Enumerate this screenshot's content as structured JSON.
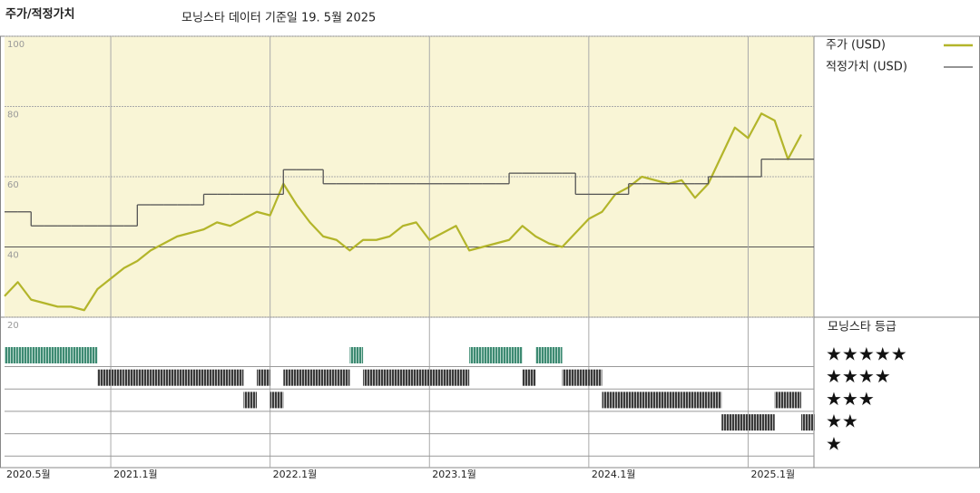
{
  "chart_data": {
    "type": "line",
    "title": "주가/적정가치",
    "subtitle": "모닝스타 데이터 기준일 19. 5월 2025",
    "x": [
      "2020-05",
      "2020-06",
      "2020-07",
      "2020-08",
      "2020-09",
      "2020-10",
      "2020-11",
      "2020-12",
      "2021-01",
      "2021-02",
      "2021-03",
      "2021-04",
      "2021-05",
      "2021-06",
      "2021-07",
      "2021-08",
      "2021-09",
      "2021-10",
      "2021-11",
      "2021-12",
      "2022-01",
      "2022-02",
      "2022-03",
      "2022-04",
      "2022-05",
      "2022-06",
      "2022-07",
      "2022-08",
      "2022-09",
      "2022-10",
      "2022-11",
      "2022-12",
      "2023-01",
      "2023-02",
      "2023-03",
      "2023-04",
      "2023-05",
      "2023-06",
      "2023-07",
      "2023-08",
      "2023-09",
      "2023-10",
      "2023-11",
      "2023-12",
      "2024-01",
      "2024-02",
      "2024-03",
      "2024-04",
      "2024-05",
      "2024-06",
      "2024-07",
      "2024-08",
      "2024-09",
      "2024-10",
      "2024-11",
      "2024-12",
      "2025-01",
      "2025-02",
      "2025-03",
      "2025-04",
      "2025-05"
    ],
    "series": [
      {
        "name": "주가 (USD)",
        "color": "#b3b52a",
        "values": [
          26,
          30,
          25,
          24,
          23,
          23,
          22,
          28,
          31,
          34,
          36,
          39,
          41,
          43,
          44,
          45,
          47,
          46,
          48,
          50,
          49,
          58,
          52,
          47,
          43,
          42,
          39,
          42,
          42,
          43,
          46,
          47,
          42,
          44,
          46,
          39,
          40,
          41,
          42,
          46,
          43,
          41,
          40,
          44,
          48,
          50,
          55,
          57,
          60,
          59,
          58,
          59,
          54,
          58,
          66,
          74,
          71,
          78,
          76,
          65,
          72
        ]
      },
      {
        "name": "적정가치 (USD)",
        "color": "#555555",
        "step": true,
        "values": [
          50,
          50,
          46,
          46,
          46,
          46,
          46,
          46,
          46,
          46,
          52,
          52,
          52,
          52,
          52,
          55,
          55,
          55,
          55,
          55,
          55,
          62,
          62,
          62,
          58,
          58,
          58,
          58,
          58,
          58,
          58,
          58,
          58,
          58,
          58,
          58,
          58,
          58,
          61,
          61,
          61,
          61,
          61,
          55,
          55,
          55,
          55,
          58,
          58,
          58,
          58,
          58,
          58,
          60,
          60,
          60,
          60,
          65,
          65,
          65,
          65
        ]
      }
    ],
    "ylim": [
      20,
      100
    ],
    "yticks": [
      20,
      40,
      60,
      80,
      100
    ],
    "xlim": [
      "2020-05",
      "2025-05"
    ],
    "xticks": [
      {
        "value": "2020-05",
        "label": "2020.5월"
      },
      {
        "value": "2021-01",
        "label": "2021.1월"
      },
      {
        "value": "2022-01",
        "label": "2022.1월"
      },
      {
        "value": "2023-01",
        "label": "2023.1월"
      },
      {
        "value": "2024-01",
        "label": "2024.1월"
      },
      {
        "value": "2025-01",
        "label": "2025.1월"
      }
    ],
    "grid": true,
    "ratings": {
      "title": "모닝스타 등급",
      "levels": [
        {
          "value": 5,
          "label": "★★★★★"
        },
        {
          "value": 4,
          "label": "★★★★"
        },
        {
          "value": 3,
          "label": "★★★"
        },
        {
          "value": 2,
          "label": "★★"
        },
        {
          "value": 1,
          "label": "★"
        }
      ],
      "color": "#3a3a3a",
      "top_color": "#3d8a72",
      "values": [
        5,
        5,
        5,
        5,
        5,
        5,
        5,
        4,
        4,
        4,
        4,
        4,
        4,
        4,
        4,
        4,
        4,
        4,
        3,
        4,
        3,
        4,
        4,
        4,
        4,
        4,
        5,
        4,
        4,
        4,
        4,
        4,
        4,
        4,
        4,
        5,
        5,
        5,
        5,
        4,
        5,
        5,
        4,
        4,
        4,
        3,
        3,
        3,
        3,
        3,
        3,
        3,
        3,
        3,
        2,
        2,
        2,
        2,
        3,
        3,
        2
      ]
    }
  }
}
